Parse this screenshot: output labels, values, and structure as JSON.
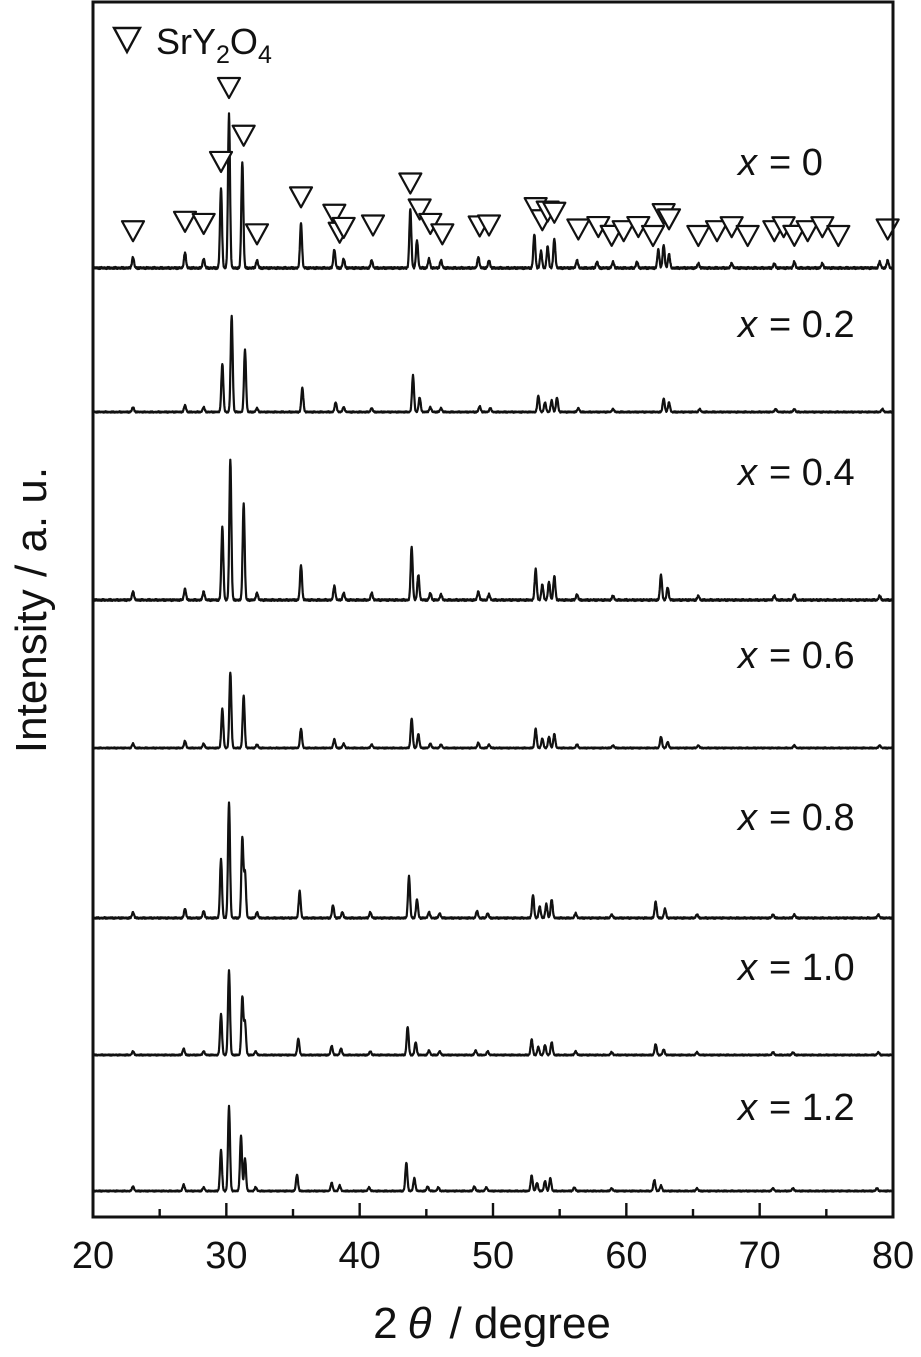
{
  "chart_data": {
    "type": "line",
    "xlabel_prefix": "2",
    "xlabel_theta": "θ",
    "xlabel_suffix": "/ degree",
    "ylabel": "Intensity / a. u.",
    "xlim": [
      20,
      80
    ],
    "xticks": [
      "20",
      "30",
      "40",
      "50",
      "60",
      "70",
      "80"
    ],
    "legend": {
      "symbol": "down-triangle",
      "base": "SrY",
      "sub1": "2",
      "mid": "O",
      "sub2": "4",
      "placement": "top-left"
    },
    "marker_positions": [
      23.0,
      26.9,
      28.3,
      29.6,
      30.2,
      31.3,
      32.3,
      35.6,
      38.1,
      38.5,
      38.8,
      41.0,
      43.8,
      44.5,
      45.3,
      46.2,
      49.0,
      49.7,
      53.2,
      53.7,
      54.1,
      54.6,
      56.4,
      57.9,
      58.9,
      59.8,
      60.9,
      62.0,
      62.8,
      63.2,
      65.4,
      66.8,
      67.9,
      69.1,
      71.1,
      71.8,
      72.6,
      73.6,
      74.7,
      75.9,
      79.6
    ],
    "series": [
      {
        "label_var": "x",
        "label_rest": "= 0",
        "peaks": [
          [
            23.0,
            0.07
          ],
          [
            26.9,
            0.1
          ],
          [
            28.3,
            0.06
          ],
          [
            29.6,
            0.52
          ],
          [
            30.2,
            1.0
          ],
          [
            31.2,
            0.69
          ],
          [
            32.3,
            0.05
          ],
          [
            35.6,
            0.29
          ],
          [
            38.1,
            0.12
          ],
          [
            38.8,
            0.06
          ],
          [
            40.9,
            0.05
          ],
          [
            43.8,
            0.38
          ],
          [
            44.3,
            0.18
          ],
          [
            45.2,
            0.06
          ],
          [
            46.1,
            0.05
          ],
          [
            48.9,
            0.07
          ],
          [
            49.7,
            0.05
          ],
          [
            53.1,
            0.22
          ],
          [
            53.6,
            0.11
          ],
          [
            54.1,
            0.14
          ],
          [
            54.6,
            0.19
          ],
          [
            56.3,
            0.05
          ],
          [
            57.8,
            0.04
          ],
          [
            59.0,
            0.04
          ],
          [
            60.8,
            0.04
          ],
          [
            62.4,
            0.12
          ],
          [
            62.8,
            0.15
          ],
          [
            63.2,
            0.09
          ],
          [
            65.4,
            0.03
          ],
          [
            67.9,
            0.03
          ],
          [
            71.1,
            0.03
          ],
          [
            72.6,
            0.04
          ],
          [
            74.7,
            0.03
          ],
          [
            79.0,
            0.04
          ],
          [
            79.6,
            0.05
          ]
        ]
      },
      {
        "label_var": "x",
        "label_rest": "= 0.2",
        "peaks": [
          [
            23.0,
            0.05
          ],
          [
            26.9,
            0.07
          ],
          [
            28.3,
            0.05
          ],
          [
            29.7,
            0.5
          ],
          [
            30.4,
            1.0
          ],
          [
            31.4,
            0.65
          ],
          [
            32.3,
            0.04
          ],
          [
            35.7,
            0.25
          ],
          [
            38.2,
            0.1
          ],
          [
            38.8,
            0.05
          ],
          [
            40.9,
            0.04
          ],
          [
            44.0,
            0.38
          ],
          [
            44.5,
            0.15
          ],
          [
            45.3,
            0.05
          ],
          [
            46.1,
            0.04
          ],
          [
            49.0,
            0.06
          ],
          [
            49.8,
            0.04
          ],
          [
            53.4,
            0.17
          ],
          [
            53.9,
            0.1
          ],
          [
            54.4,
            0.12
          ],
          [
            54.8,
            0.15
          ],
          [
            56.4,
            0.04
          ],
          [
            59.0,
            0.03
          ],
          [
            62.8,
            0.14
          ],
          [
            63.2,
            0.1
          ],
          [
            65.5,
            0.03
          ],
          [
            71.2,
            0.03
          ],
          [
            72.6,
            0.03
          ],
          [
            79.2,
            0.03
          ]
        ]
      },
      {
        "label_var": "x",
        "label_rest": "= 0.4",
        "peaks": [
          [
            23.0,
            0.06
          ],
          [
            26.9,
            0.08
          ],
          [
            28.3,
            0.06
          ],
          [
            29.7,
            0.52
          ],
          [
            30.3,
            1.0
          ],
          [
            31.3,
            0.69
          ],
          [
            32.3,
            0.05
          ],
          [
            35.6,
            0.25
          ],
          [
            38.1,
            0.1
          ],
          [
            38.8,
            0.05
          ],
          [
            40.9,
            0.05
          ],
          [
            43.9,
            0.38
          ],
          [
            44.4,
            0.18
          ],
          [
            45.3,
            0.05
          ],
          [
            46.1,
            0.04
          ],
          [
            48.9,
            0.06
          ],
          [
            49.7,
            0.04
          ],
          [
            53.2,
            0.22
          ],
          [
            53.7,
            0.11
          ],
          [
            54.2,
            0.13
          ],
          [
            54.6,
            0.17
          ],
          [
            56.3,
            0.04
          ],
          [
            59.0,
            0.03
          ],
          [
            62.6,
            0.18
          ],
          [
            63.1,
            0.09
          ],
          [
            65.4,
            0.03
          ],
          [
            71.1,
            0.03
          ],
          [
            72.6,
            0.04
          ],
          [
            79.0,
            0.03
          ]
        ]
      },
      {
        "label_var": "x",
        "label_rest": "= 0.6",
        "peaks": [
          [
            23.0,
            0.05
          ],
          [
            26.9,
            0.08
          ],
          [
            28.3,
            0.05
          ],
          [
            29.7,
            0.45
          ],
          [
            30.3,
            0.87
          ],
          [
            31.3,
            0.6
          ],
          [
            32.3,
            0.04
          ],
          [
            35.6,
            0.22
          ],
          [
            38.1,
            0.1
          ],
          [
            38.8,
            0.05
          ],
          [
            40.9,
            0.04
          ],
          [
            43.9,
            0.34
          ],
          [
            44.4,
            0.16
          ],
          [
            45.3,
            0.05
          ],
          [
            46.1,
            0.04
          ],
          [
            48.9,
            0.06
          ],
          [
            49.7,
            0.04
          ],
          [
            53.2,
            0.22
          ],
          [
            53.7,
            0.11
          ],
          [
            54.2,
            0.13
          ],
          [
            54.6,
            0.16
          ],
          [
            56.3,
            0.04
          ],
          [
            59.0,
            0.03
          ],
          [
            62.6,
            0.13
          ],
          [
            63.1,
            0.07
          ],
          [
            65.4,
            0.03
          ],
          [
            72.6,
            0.03
          ],
          [
            79.0,
            0.03
          ]
        ]
      },
      {
        "label_var": "x",
        "label_rest": "= 0.8",
        "peaks": [
          [
            23.0,
            0.05
          ],
          [
            26.9,
            0.08
          ],
          [
            28.3,
            0.06
          ],
          [
            29.6,
            0.51
          ],
          [
            30.2,
            1.0
          ],
          [
            31.2,
            0.69
          ],
          [
            31.4,
            0.39
          ],
          [
            32.3,
            0.05
          ],
          [
            35.5,
            0.23
          ],
          [
            38.0,
            0.11
          ],
          [
            38.7,
            0.05
          ],
          [
            40.8,
            0.05
          ],
          [
            43.7,
            0.36
          ],
          [
            44.3,
            0.16
          ],
          [
            45.2,
            0.05
          ],
          [
            46.0,
            0.04
          ],
          [
            48.8,
            0.06
          ],
          [
            49.6,
            0.04
          ],
          [
            53.0,
            0.2
          ],
          [
            53.5,
            0.1
          ],
          [
            54.0,
            0.12
          ],
          [
            54.4,
            0.16
          ],
          [
            56.2,
            0.04
          ],
          [
            58.9,
            0.03
          ],
          [
            62.2,
            0.14
          ],
          [
            62.9,
            0.08
          ],
          [
            65.3,
            0.03
          ],
          [
            71.0,
            0.03
          ],
          [
            72.6,
            0.03
          ],
          [
            78.9,
            0.03
          ]
        ]
      },
      {
        "label_var": "x",
        "label_rest": "= 1.0",
        "peaks": [
          [
            23.0,
            0.04
          ],
          [
            26.8,
            0.07
          ],
          [
            28.3,
            0.04
          ],
          [
            29.6,
            0.45
          ],
          [
            30.2,
            0.93
          ],
          [
            31.2,
            0.64
          ],
          [
            31.4,
            0.36
          ],
          [
            32.2,
            0.04
          ],
          [
            35.4,
            0.18
          ],
          [
            37.9,
            0.1
          ],
          [
            38.6,
            0.07
          ],
          [
            40.8,
            0.04
          ],
          [
            43.6,
            0.31
          ],
          [
            44.2,
            0.14
          ],
          [
            45.2,
            0.05
          ],
          [
            46.0,
            0.04
          ],
          [
            48.7,
            0.05
          ],
          [
            49.6,
            0.04
          ],
          [
            52.9,
            0.17
          ],
          [
            53.4,
            0.09
          ],
          [
            53.9,
            0.11
          ],
          [
            54.4,
            0.14
          ],
          [
            56.2,
            0.04
          ],
          [
            58.9,
            0.03
          ],
          [
            62.2,
            0.12
          ],
          [
            62.8,
            0.06
          ],
          [
            65.3,
            0.03
          ],
          [
            71.0,
            0.03
          ],
          [
            72.5,
            0.03
          ],
          [
            78.9,
            0.03
          ]
        ]
      },
      {
        "label_var": "x",
        "label_rest": "= 1.2",
        "peaks": [
          [
            23.0,
            0.05
          ],
          [
            26.8,
            0.07
          ],
          [
            28.3,
            0.04
          ],
          [
            29.6,
            0.45
          ],
          [
            30.2,
            0.93
          ],
          [
            31.1,
            0.61
          ],
          [
            31.4,
            0.36
          ],
          [
            32.2,
            0.04
          ],
          [
            35.3,
            0.18
          ],
          [
            37.9,
            0.09
          ],
          [
            38.5,
            0.06
          ],
          [
            40.7,
            0.04
          ],
          [
            43.5,
            0.31
          ],
          [
            44.1,
            0.14
          ],
          [
            45.1,
            0.05
          ],
          [
            45.9,
            0.04
          ],
          [
            48.6,
            0.05
          ],
          [
            49.5,
            0.04
          ],
          [
            52.9,
            0.17
          ],
          [
            53.3,
            0.09
          ],
          [
            53.9,
            0.11
          ],
          [
            54.3,
            0.14
          ],
          [
            56.1,
            0.04
          ],
          [
            58.9,
            0.03
          ],
          [
            62.1,
            0.12
          ],
          [
            62.6,
            0.06
          ],
          [
            65.3,
            0.03
          ],
          [
            71.0,
            0.03
          ],
          [
            72.5,
            0.03
          ],
          [
            78.8,
            0.03
          ]
        ]
      }
    ]
  }
}
